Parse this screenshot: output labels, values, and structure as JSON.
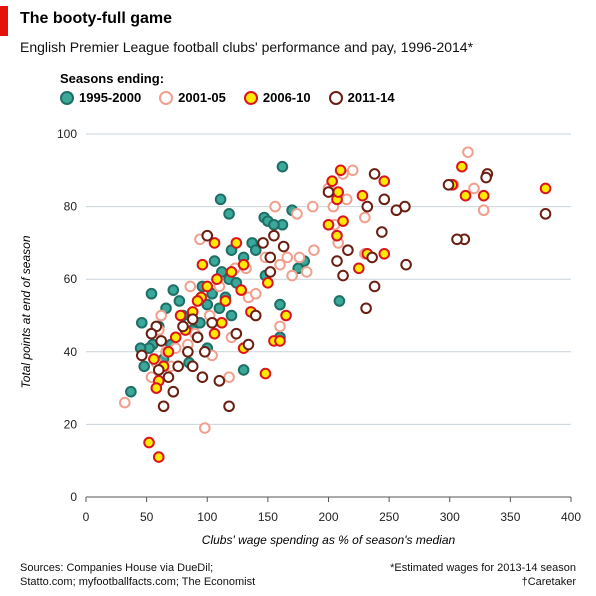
{
  "header": {
    "title": "The booty-full game",
    "subtitle": "English Premier League football clubs' performance and pay, 1996-2014*"
  },
  "legend": {
    "heading": "Seasons ending:",
    "items": [
      {
        "label": "1995-2000",
        "fill": "#3aa89a",
        "stroke": "#1f6f66"
      },
      {
        "label": "2001-05",
        "fill": "#ffffff",
        "stroke": "#f0a08e"
      },
      {
        "label": "2006-10",
        "fill": "#ffea00",
        "stroke": "#d9141b"
      },
      {
        "label": "2011-14",
        "fill": "#ffffff",
        "stroke": "#6b1f12"
      }
    ]
  },
  "footer": {
    "sources_line1": "Sources: Companies House via DueDil;",
    "sources_line2": "Statto.com; myfootballfacts.com; The Economist",
    "note_line1": "*Estimated wages for 2013-14 season",
    "note_line2": "†Caretaker"
  },
  "chart_data": {
    "type": "scatter",
    "xlabel": "Clubs' wage spending as % of season's median",
    "ylabel": "Total points at end of season",
    "xlim": [
      0,
      400
    ],
    "ylim": [
      0,
      100
    ],
    "xticks": [
      0,
      50,
      100,
      150,
      200,
      250,
      300,
      350,
      400
    ],
    "yticks": [
      0,
      20,
      40,
      60,
      80,
      100
    ],
    "grid": "horizontal",
    "legend_position": "top-left",
    "series": [
      {
        "name": "1995-2000",
        "points": [
          [
            162,
            91
          ],
          [
            111,
            82
          ],
          [
            118,
            78
          ],
          [
            170,
            79
          ],
          [
            162,
            75
          ],
          [
            147,
            77
          ],
          [
            150,
            76
          ],
          [
            155,
            75
          ],
          [
            137,
            70
          ],
          [
            140,
            68
          ],
          [
            130,
            66
          ],
          [
            120,
            68
          ],
          [
            106,
            65
          ],
          [
            112,
            62
          ],
          [
            118,
            60
          ],
          [
            124,
            59
          ],
          [
            104,
            56
          ],
          [
            96,
            58
          ],
          [
            100,
            53
          ],
          [
            110,
            52
          ],
          [
            115,
            55
          ],
          [
            120,
            50
          ],
          [
            94,
            48
          ],
          [
            88,
            46
          ],
          [
            80,
            50
          ],
          [
            77,
            54
          ],
          [
            72,
            57
          ],
          [
            66,
            52
          ],
          [
            60,
            47
          ],
          [
            55,
            42
          ],
          [
            52,
            41
          ],
          [
            45,
            41
          ],
          [
            46,
            48
          ],
          [
            54,
            56
          ],
          [
            48,
            36
          ],
          [
            37,
            29
          ],
          [
            130,
            35
          ],
          [
            160,
            44
          ],
          [
            175,
            63
          ],
          [
            180,
            65
          ],
          [
            209,
            54
          ],
          [
            148,
            61
          ],
          [
            160,
            53
          ],
          [
            100,
            41
          ],
          [
            92,
            44
          ],
          [
            85,
            37
          ],
          [
            70,
            42
          ],
          [
            64,
            38
          ]
        ]
      },
      {
        "name": "2001-05",
        "points": [
          [
            315,
            95
          ],
          [
            320,
            85
          ],
          [
            303,
            86
          ],
          [
            328,
            79
          ],
          [
            212,
            89
          ],
          [
            220,
            90
          ],
          [
            200,
            85
          ],
          [
            204,
            80
          ],
          [
            205,
            75
          ],
          [
            230,
            77
          ],
          [
            187,
            80
          ],
          [
            174,
            78
          ],
          [
            156,
            80
          ],
          [
            166,
            66
          ],
          [
            170,
            61
          ],
          [
            182,
            62
          ],
          [
            176,
            66
          ],
          [
            148,
            66
          ],
          [
            160,
            64
          ],
          [
            123,
            63
          ],
          [
            132,
            63
          ],
          [
            94,
            71
          ],
          [
            110,
            58
          ],
          [
            102,
            50
          ],
          [
            90,
            45
          ],
          [
            84,
            42
          ],
          [
            74,
            41
          ],
          [
            66,
            40
          ],
          [
            60,
            46
          ],
          [
            58,
            37
          ],
          [
            54,
            33
          ],
          [
            32,
            26
          ],
          [
            98,
            19
          ],
          [
            118,
            33
          ],
          [
            120,
            44
          ],
          [
            134,
            55
          ],
          [
            140,
            56
          ],
          [
            160,
            47
          ],
          [
            188,
            68
          ],
          [
            208,
            70
          ],
          [
            230,
            67
          ],
          [
            215,
            82
          ],
          [
            62,
            50
          ],
          [
            70,
            36
          ],
          [
            86,
            58
          ],
          [
            104,
            39
          ]
        ]
      },
      {
        "name": "2006-10",
        "points": [
          [
            379,
            85
          ],
          [
            310,
            91
          ],
          [
            328,
            83
          ],
          [
            313,
            83
          ],
          [
            302,
            86
          ],
          [
            210,
            90
          ],
          [
            207,
            82
          ],
          [
            203,
            87
          ],
          [
            200,
            75
          ],
          [
            208,
            84
          ],
          [
            212,
            76
          ],
          [
            228,
            83
          ],
          [
            232,
            67
          ],
          [
            246,
            67
          ],
          [
            225,
            63
          ],
          [
            246,
            87
          ],
          [
            207,
            72
          ],
          [
            150,
            59
          ],
          [
            130,
            64
          ],
          [
            128,
            57
          ],
          [
            124,
            70
          ],
          [
            120,
            62
          ],
          [
            115,
            54
          ],
          [
            112,
            48
          ],
          [
            106,
            45
          ],
          [
            100,
            58
          ],
          [
            96,
            64
          ],
          [
            95,
            55
          ],
          [
            92,
            54
          ],
          [
            88,
            51
          ],
          [
            82,
            46
          ],
          [
            78,
            50
          ],
          [
            74,
            44
          ],
          [
            68,
            40
          ],
          [
            64,
            36
          ],
          [
            60,
            32
          ],
          [
            58,
            30
          ],
          [
            56,
            38
          ],
          [
            52,
            15
          ],
          [
            60,
            11
          ],
          [
            148,
            34
          ],
          [
            155,
            43
          ],
          [
            160,
            43
          ],
          [
            165,
            50
          ],
          [
            136,
            51
          ],
          [
            130,
            41
          ],
          [
            108,
            60
          ],
          [
            106,
            70
          ]
        ]
      },
      {
        "name": "2011-14",
        "points": [
          [
            331,
            89
          ],
          [
            299,
            86
          ],
          [
            312,
            71
          ],
          [
            306,
            71
          ],
          [
            379,
            78
          ],
          [
            330,
            88
          ],
          [
            263,
            80
          ],
          [
            256,
            79
          ],
          [
            264,
            64
          ],
          [
            246,
            82
          ],
          [
            238,
            89
          ],
          [
            232,
            80
          ],
          [
            244,
            73
          ],
          [
            236,
            66
          ],
          [
            238,
            58
          ],
          [
            231,
            52
          ],
          [
            216,
            68
          ],
          [
            212,
            61
          ],
          [
            207,
            65
          ],
          [
            200,
            84
          ],
          [
            163,
            69
          ],
          [
            155,
            72
          ],
          [
            152,
            66
          ],
          [
            146,
            70
          ],
          [
            140,
            50
          ],
          [
            134,
            42
          ],
          [
            118,
            25
          ],
          [
            110,
            32
          ],
          [
            104,
            48
          ],
          [
            100,
            72
          ],
          [
            98,
            40
          ],
          [
            96,
            33
          ],
          [
            92,
            44
          ],
          [
            88,
            49
          ],
          [
            84,
            40
          ],
          [
            80,
            47
          ],
          [
            76,
            36
          ],
          [
            72,
            29
          ],
          [
            68,
            33
          ],
          [
            64,
            25
          ],
          [
            62,
            43
          ],
          [
            58,
            47
          ],
          [
            54,
            45
          ],
          [
            46,
            39
          ],
          [
            152,
            62
          ],
          [
            124,
            45
          ],
          [
            60,
            35
          ],
          [
            88,
            36
          ]
        ]
      }
    ]
  }
}
